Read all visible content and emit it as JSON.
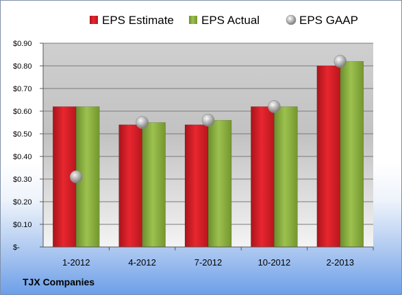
{
  "footer": {
    "company": "TJX Companies"
  },
  "chart_data": {
    "type": "bar",
    "categories": [
      "1-2012",
      "4-2012",
      "7-2012",
      "10-2012",
      "2-2013"
    ],
    "series": [
      {
        "name": "EPS Estimate",
        "kind": "bar",
        "color": "#e0202a",
        "values": [
          0.62,
          0.54,
          0.54,
          0.62,
          0.8
        ]
      },
      {
        "name": "EPS Actual",
        "kind": "bar",
        "color": "#8db040",
        "values": [
          0.62,
          0.55,
          0.56,
          0.62,
          0.82
        ]
      },
      {
        "name": "EPS GAAP",
        "kind": "marker",
        "color": "#b0b0b0",
        "values": [
          0.31,
          0.55,
          0.56,
          0.62,
          0.82
        ]
      }
    ],
    "ylim": [
      0,
      0.9
    ],
    "yticks": [
      {
        "value": 0.9,
        "label": "$0.90"
      },
      {
        "value": 0.8,
        "label": "$0.80"
      },
      {
        "value": 0.7,
        "label": "$0.70"
      },
      {
        "value": 0.6,
        "label": "$0.60"
      },
      {
        "value": 0.5,
        "label": "$0.50"
      },
      {
        "value": 0.4,
        "label": "$0.40"
      },
      {
        "value": 0.3,
        "label": "$0.30"
      },
      {
        "value": 0.2,
        "label": "$0.20"
      },
      {
        "value": 0.1,
        "label": "$0.10"
      },
      {
        "value": 0,
        "label": "$-"
      }
    ],
    "grid": true,
    "legend": "top"
  }
}
